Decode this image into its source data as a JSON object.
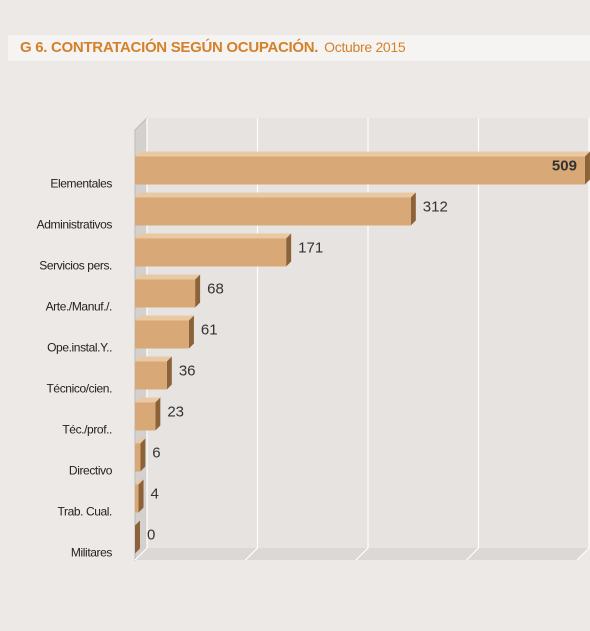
{
  "chart_data": {
    "type": "bar3d",
    "title": "G 6. CONTRATACIÓN  SEGÚN OCUPACIÓN.",
    "subtitle": "Octubre 2015",
    "categories": [
      "Elementales",
      "Administrativos",
      "Servicios pers.",
      "Arte./Manuf./.",
      "Ope.instal.Y..",
      "Técnico/cien.",
      "Téc./prof..",
      "Directivo",
      "Trab. Cual.",
      "Militares"
    ],
    "values": [
      509,
      312,
      171,
      68,
      61,
      36,
      23,
      6,
      4,
      0
    ],
    "color": "#d9a877",
    "xlim": [
      0,
      500
    ],
    "xticks": [
      0,
      125,
      250,
      375,
      500
    ],
    "grid": true
  }
}
